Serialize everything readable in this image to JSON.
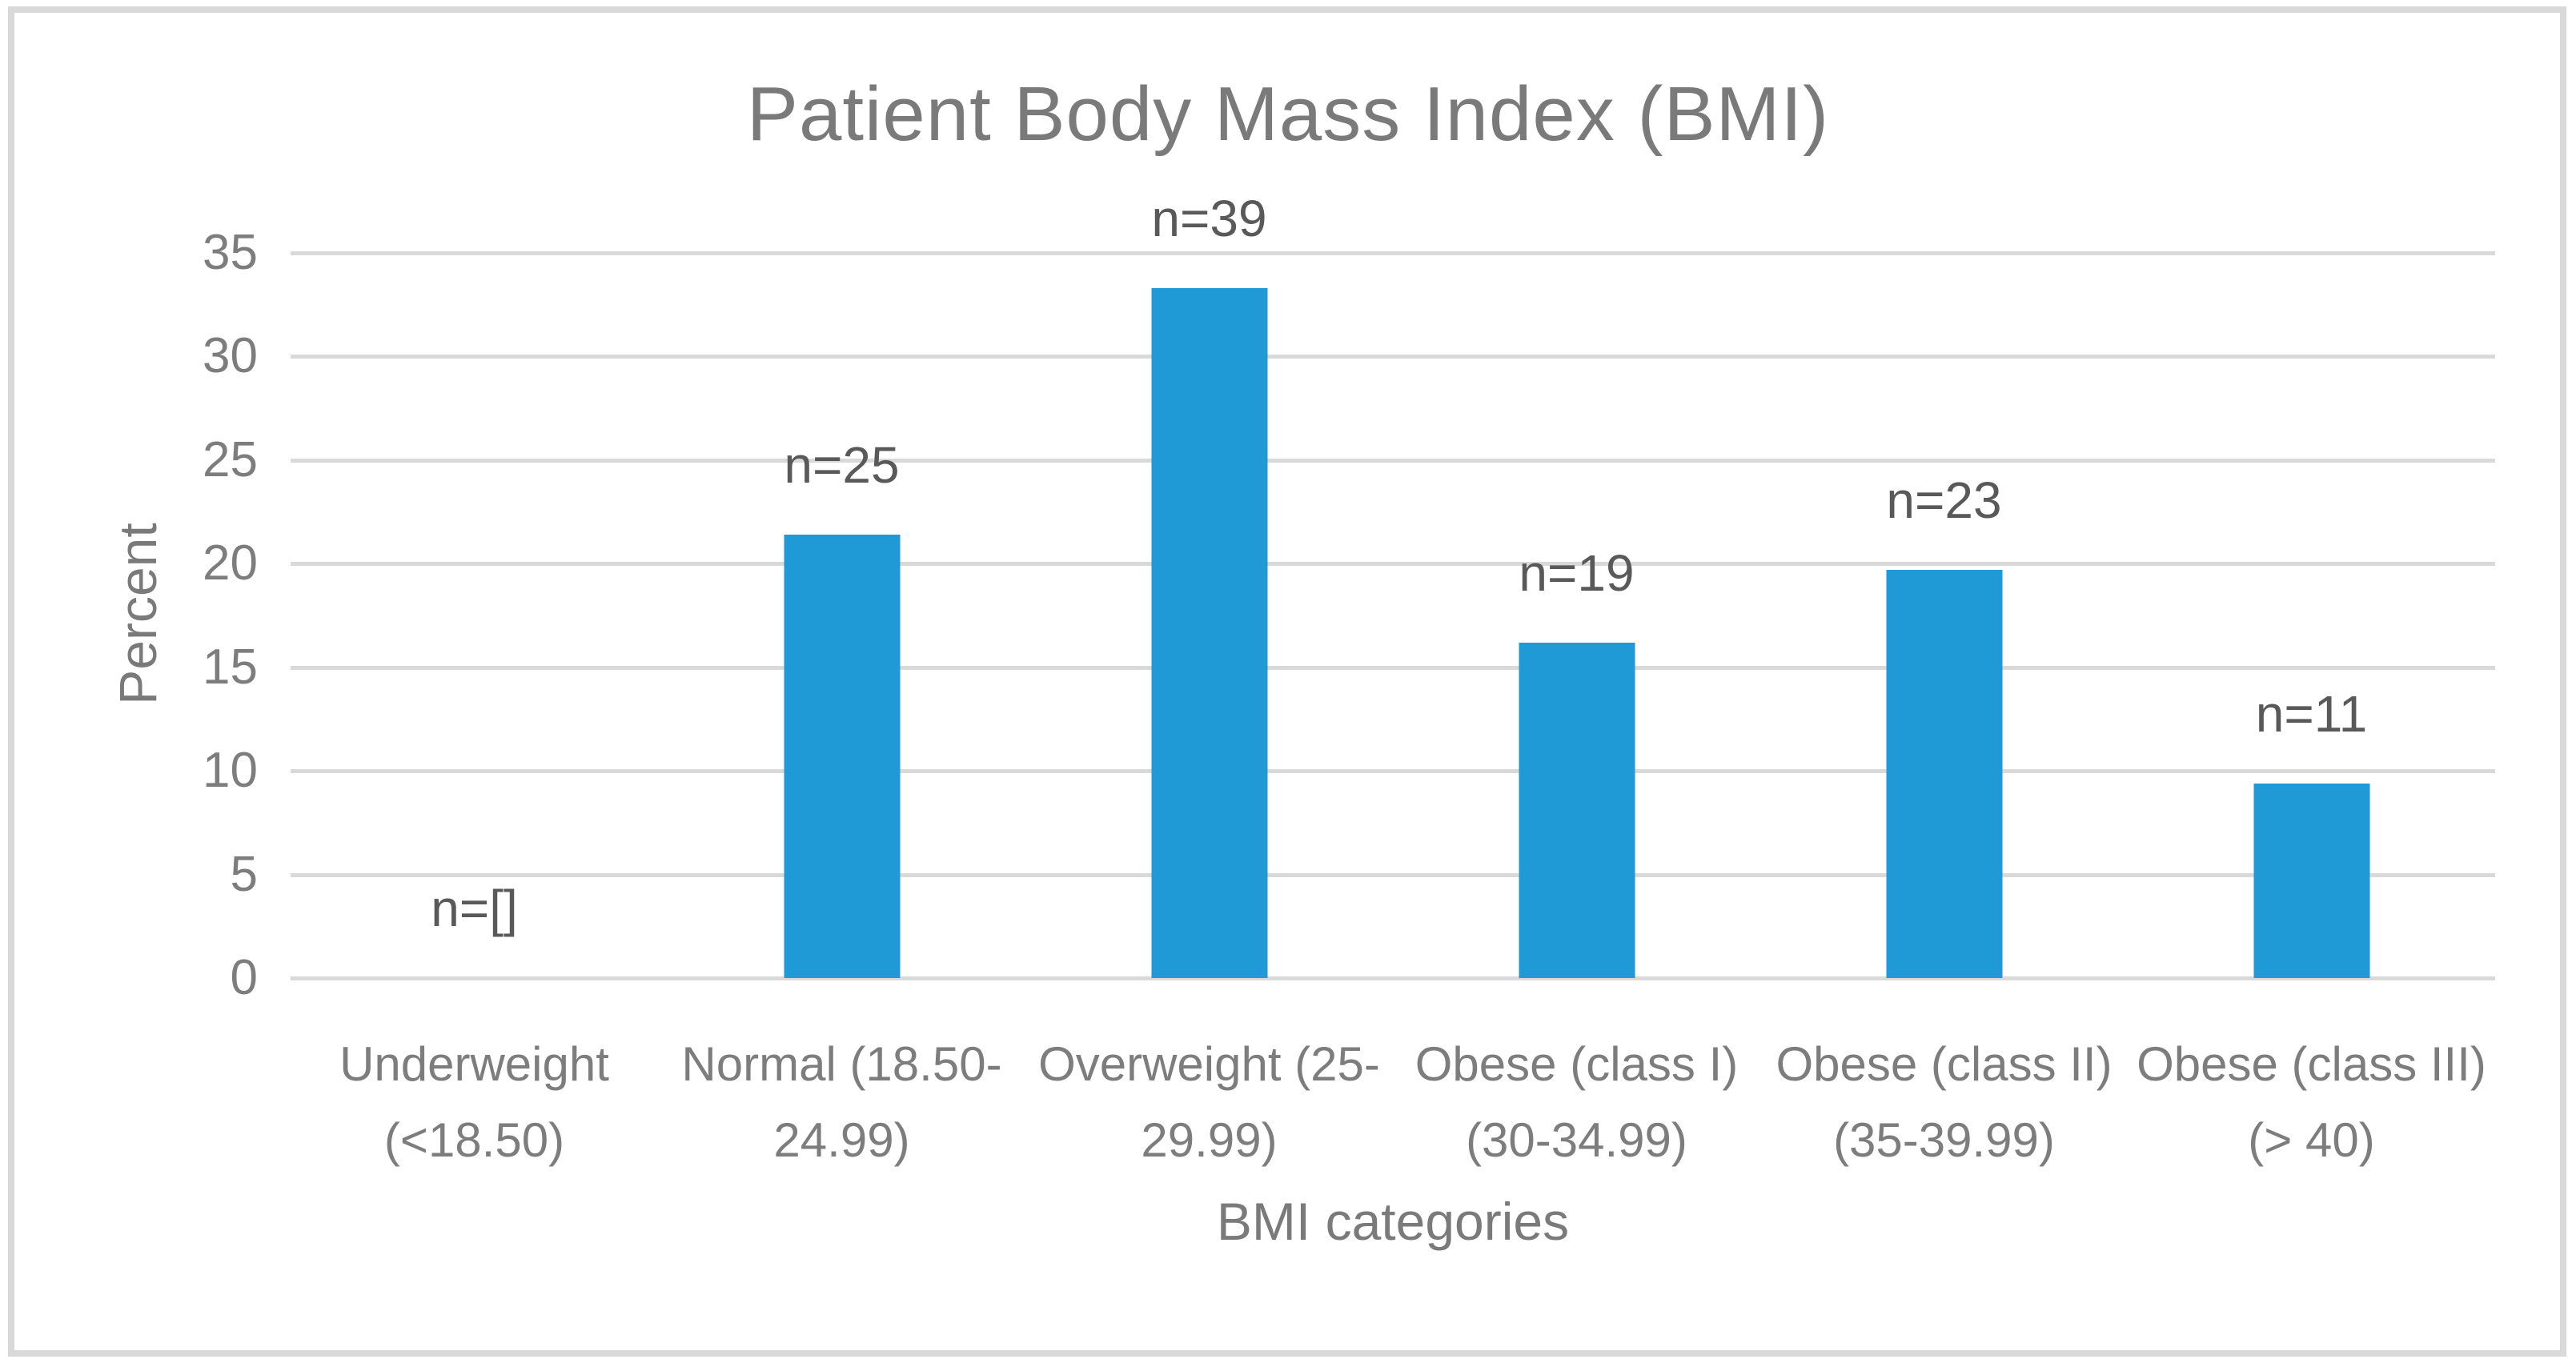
{
  "chart_data": {
    "type": "bar",
    "title": "Patient Body Mass Index (BMI)",
    "xlabel": "BMI categories",
    "ylabel": "Percent",
    "categories": [
      "Underweight (<18.50)",
      "Normal (18.50-24.99)",
      "Overweight (25-29.99)",
      "Obese (class I) (30-34.99)",
      "Obese (class II)(35-39.99)",
      "Obese (class III) (> 40)"
    ],
    "values": [
      0,
      21.4,
      33.3,
      16.2,
      19.7,
      9.4
    ],
    "bar_labels": [
      "n=[]",
      "n=25",
      "n=39",
      "n=19",
      "n=23",
      "n=11"
    ],
    "yticks": [
      0,
      5,
      10,
      15,
      20,
      25,
      30,
      35
    ],
    "ylim": [
      0,
      35
    ],
    "grid": true,
    "legend": false,
    "bar_color": "#1f9ad6",
    "gridline_color": "#d9d9d9",
    "border_color": "#d9d9d9",
    "title_color": "#7a7a7a",
    "axis_text_color": "#7d7d7d",
    "data_label_color": "#595959"
  }
}
